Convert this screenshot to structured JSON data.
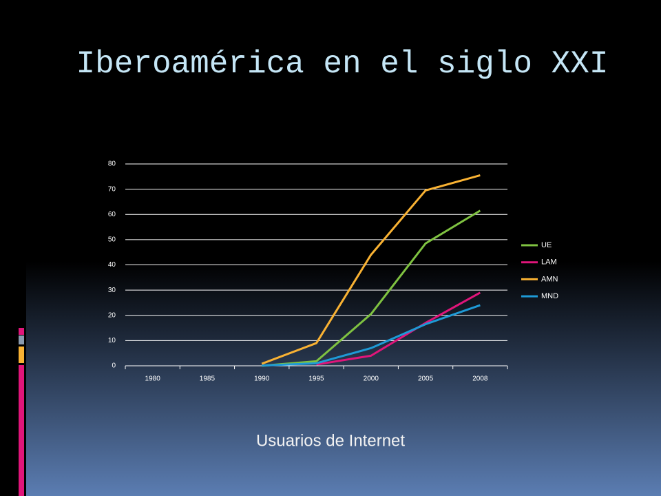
{
  "slide": {
    "title": "Iberoamérica en el siglo XXI",
    "caption": "Usuarios de Internet"
  },
  "chart_data": {
    "type": "line",
    "categories": [
      "1980",
      "1985",
      "1990",
      "1995",
      "2000",
      "2005",
      "2008"
    ],
    "series": [
      {
        "name": "UE",
        "color": "#7fc241",
        "values": [
          null,
          null,
          0,
          1.8,
          20.5,
          48.5,
          61.5
        ]
      },
      {
        "name": "LAM",
        "color": "#e0157a",
        "values": [
          null,
          null,
          null,
          0.5,
          4,
          17,
          29
        ]
      },
      {
        "name": "AMN",
        "color": "#f9b233",
        "values": [
          null,
          null,
          0.8,
          9,
          44,
          69.5,
          75.5
        ]
      },
      {
        "name": "MND",
        "color": "#1e9ad6",
        "values": [
          null,
          null,
          0.1,
          1,
          7,
          16.5,
          24
        ]
      }
    ],
    "ylim": [
      0,
      80
    ],
    "yticks": [
      0,
      10,
      20,
      30,
      40,
      50,
      60,
      70,
      80
    ],
    "grid": true,
    "legend": "right"
  }
}
